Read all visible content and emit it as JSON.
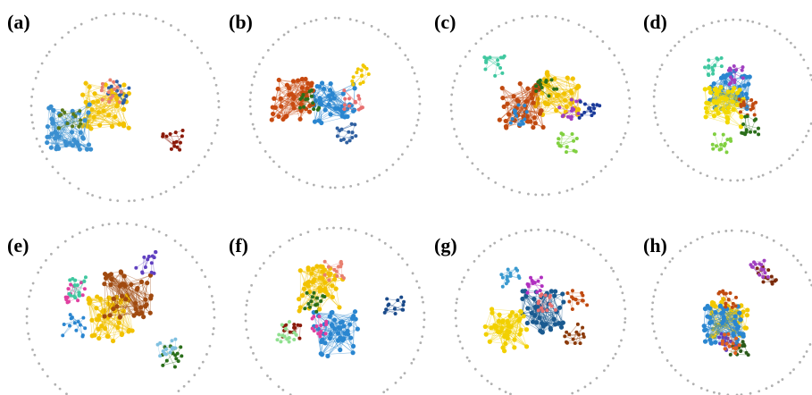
{
  "panels": [
    {
      "label": "(a)",
      "colors": [
        "#f2c200",
        "#3a8fd0",
        "#8b1a0a",
        "#2d5fa8",
        "#5a7a1a",
        "#e88070"
      ]
    },
    {
      "label": "(b)",
      "colors": [
        "#2a86d0",
        "#c84a10",
        "#f2c800",
        "#2a6e1a",
        "#3060a0",
        "#e87070"
      ]
    },
    {
      "label": "(c)",
      "colors": [
        "#f2c200",
        "#c04a10",
        "#2a86d0",
        "#2a6e1a",
        "#40c8a0",
        "#a040c0",
        "#80d040",
        "#1a3a9a"
      ]
    },
    {
      "label": "(d)",
      "colors": [
        "#2a86d0",
        "#f2d800",
        "#c04a10",
        "#40c8a0",
        "#a040c0",
        "#80d040",
        "#2a6e1a"
      ]
    },
    {
      "label": "(e)",
      "colors": [
        "#f2c200",
        "#a04a10",
        "#2a86d0",
        "#e040a0",
        "#2a6e1a",
        "#40c8a0",
        "#6040c0",
        "#80c0e0"
      ]
    },
    {
      "label": "(f)",
      "colors": [
        "#2a86d0",
        "#f2c200",
        "#1a4a8a",
        "#8b1a0a",
        "#2a6e1a",
        "#e040a0",
        "#90e090",
        "#e88070"
      ]
    },
    {
      "label": "(g)",
      "colors": [
        "#1a5a90",
        "#f2d000",
        "#c04a10",
        "#b030c0",
        "#3a9ad0",
        "#e87070",
        "#8b3a0a"
      ]
    },
    {
      "label": "(h)",
      "colors": [
        "#f2c800",
        "#2a86d0",
        "#7a2a0a",
        "#2a5a1a",
        "#c04a10",
        "#a040c0",
        "#6040c0",
        "#e06020"
      ]
    }
  ]
}
